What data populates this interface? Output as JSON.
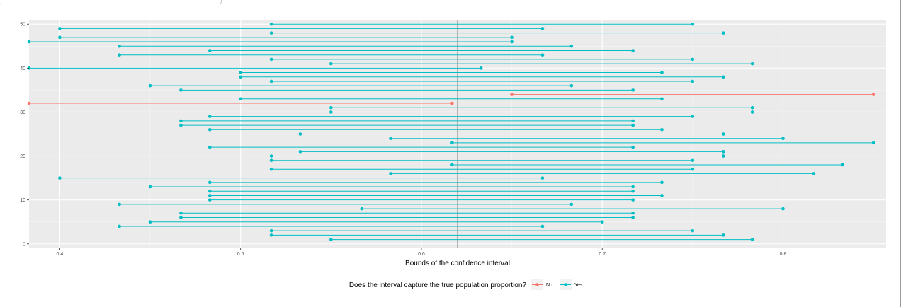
{
  "chart_data": {
    "type": "interval",
    "xlabel": "Bounds of the confidence interval",
    "ylabel": "",
    "xlim": [
      0.383,
      0.857
    ],
    "ylim": [
      -1,
      51
    ],
    "x_ticks": [
      "0.4",
      "0.5",
      "0.6",
      "0.7",
      "0.8"
    ],
    "x_tick_values": [
      0.4,
      0.5,
      0.6,
      0.7,
      0.8
    ],
    "y_ticks": [
      "0",
      "10",
      "20",
      "30",
      "40",
      "50"
    ],
    "y_tick_values": [
      0,
      10,
      20,
      30,
      40,
      50
    ],
    "reference_line": 0.62,
    "grid": true,
    "legend": {
      "title": "Does the interval capture the true population proportion?",
      "position": "bottom",
      "entries": [
        {
          "label": "No",
          "color": "#F8766D"
        },
        {
          "label": "Yes",
          "color": "#00BFC4"
        }
      ]
    },
    "intervals": [
      {
        "y": 1,
        "lower": 0.55,
        "upper": 0.783,
        "captures": "Yes"
      },
      {
        "y": 2,
        "lower": 0.517,
        "upper": 0.767,
        "captures": "Yes"
      },
      {
        "y": 3,
        "lower": 0.517,
        "upper": 0.75,
        "captures": "Yes"
      },
      {
        "y": 4,
        "lower": 0.433,
        "upper": 0.667,
        "captures": "Yes"
      },
      {
        "y": 5,
        "lower": 0.45,
        "upper": 0.7,
        "captures": "Yes"
      },
      {
        "y": 6,
        "lower": 0.467,
        "upper": 0.717,
        "captures": "Yes"
      },
      {
        "y": 7,
        "lower": 0.467,
        "upper": 0.717,
        "captures": "Yes"
      },
      {
        "y": 8,
        "lower": 0.567,
        "upper": 0.8,
        "captures": "Yes"
      },
      {
        "y": 9,
        "lower": 0.433,
        "upper": 0.683,
        "captures": "Yes"
      },
      {
        "y": 10,
        "lower": 0.483,
        "upper": 0.717,
        "captures": "Yes"
      },
      {
        "y": 11,
        "lower": 0.483,
        "upper": 0.733,
        "captures": "Yes"
      },
      {
        "y": 12,
        "lower": 0.483,
        "upper": 0.717,
        "captures": "Yes"
      },
      {
        "y": 13,
        "lower": 0.45,
        "upper": 0.717,
        "captures": "Yes"
      },
      {
        "y": 14,
        "lower": 0.483,
        "upper": 0.733,
        "captures": "Yes"
      },
      {
        "y": 15,
        "lower": 0.4,
        "upper": 0.667,
        "captures": "Yes"
      },
      {
        "y": 16,
        "lower": 0.583,
        "upper": 0.817,
        "captures": "Yes"
      },
      {
        "y": 17,
        "lower": 0.517,
        "upper": 0.75,
        "captures": "Yes"
      },
      {
        "y": 18,
        "lower": 0.617,
        "upper": 0.833,
        "captures": "Yes"
      },
      {
        "y": 19,
        "lower": 0.517,
        "upper": 0.75,
        "captures": "Yes"
      },
      {
        "y": 20,
        "lower": 0.517,
        "upper": 0.767,
        "captures": "Yes"
      },
      {
        "y": 21,
        "lower": 0.533,
        "upper": 0.767,
        "captures": "Yes"
      },
      {
        "y": 22,
        "lower": 0.483,
        "upper": 0.717,
        "captures": "Yes"
      },
      {
        "y": 23,
        "lower": 0.617,
        "upper": 0.85,
        "captures": "Yes"
      },
      {
        "y": 24,
        "lower": 0.583,
        "upper": 0.8,
        "captures": "Yes"
      },
      {
        "y": 25,
        "lower": 0.533,
        "upper": 0.767,
        "captures": "Yes"
      },
      {
        "y": 26,
        "lower": 0.483,
        "upper": 0.733,
        "captures": "Yes"
      },
      {
        "y": 27,
        "lower": 0.467,
        "upper": 0.717,
        "captures": "Yes"
      },
      {
        "y": 28,
        "lower": 0.467,
        "upper": 0.717,
        "captures": "Yes"
      },
      {
        "y": 29,
        "lower": 0.483,
        "upper": 0.75,
        "captures": "Yes"
      },
      {
        "y": 30,
        "lower": 0.55,
        "upper": 0.783,
        "captures": "Yes"
      },
      {
        "y": 31,
        "lower": 0.55,
        "upper": 0.783,
        "captures": "Yes"
      },
      {
        "y": 32,
        "lower": 0.383,
        "upper": 0.617,
        "captures": "No"
      },
      {
        "y": 33,
        "lower": 0.5,
        "upper": 0.733,
        "captures": "Yes"
      },
      {
        "y": 34,
        "lower": 0.65,
        "upper": 0.85,
        "captures": "No"
      },
      {
        "y": 35,
        "lower": 0.467,
        "upper": 0.717,
        "captures": "Yes"
      },
      {
        "y": 36,
        "lower": 0.45,
        "upper": 0.683,
        "captures": "Yes"
      },
      {
        "y": 37,
        "lower": 0.517,
        "upper": 0.75,
        "captures": "Yes"
      },
      {
        "y": 38,
        "lower": 0.5,
        "upper": 0.767,
        "captures": "Yes"
      },
      {
        "y": 39,
        "lower": 0.5,
        "upper": 0.733,
        "captures": "Yes"
      },
      {
        "y": 40,
        "lower": 0.383,
        "upper": 0.633,
        "captures": "Yes"
      },
      {
        "y": 41,
        "lower": 0.55,
        "upper": 0.783,
        "captures": "Yes"
      },
      {
        "y": 42,
        "lower": 0.517,
        "upper": 0.75,
        "captures": "Yes"
      },
      {
        "y": 43,
        "lower": 0.433,
        "upper": 0.667,
        "captures": "Yes"
      },
      {
        "y": 44,
        "lower": 0.483,
        "upper": 0.717,
        "captures": "Yes"
      },
      {
        "y": 45,
        "lower": 0.433,
        "upper": 0.683,
        "captures": "Yes"
      },
      {
        "y": 46,
        "lower": 0.383,
        "upper": 0.65,
        "captures": "Yes"
      },
      {
        "y": 47,
        "lower": 0.4,
        "upper": 0.65,
        "captures": "Yes"
      },
      {
        "y": 48,
        "lower": 0.517,
        "upper": 0.767,
        "captures": "Yes"
      },
      {
        "y": 49,
        "lower": 0.4,
        "upper": 0.667,
        "captures": "Yes"
      },
      {
        "y": 50,
        "lower": 0.517,
        "upper": 0.75,
        "captures": "Yes"
      }
    ]
  }
}
